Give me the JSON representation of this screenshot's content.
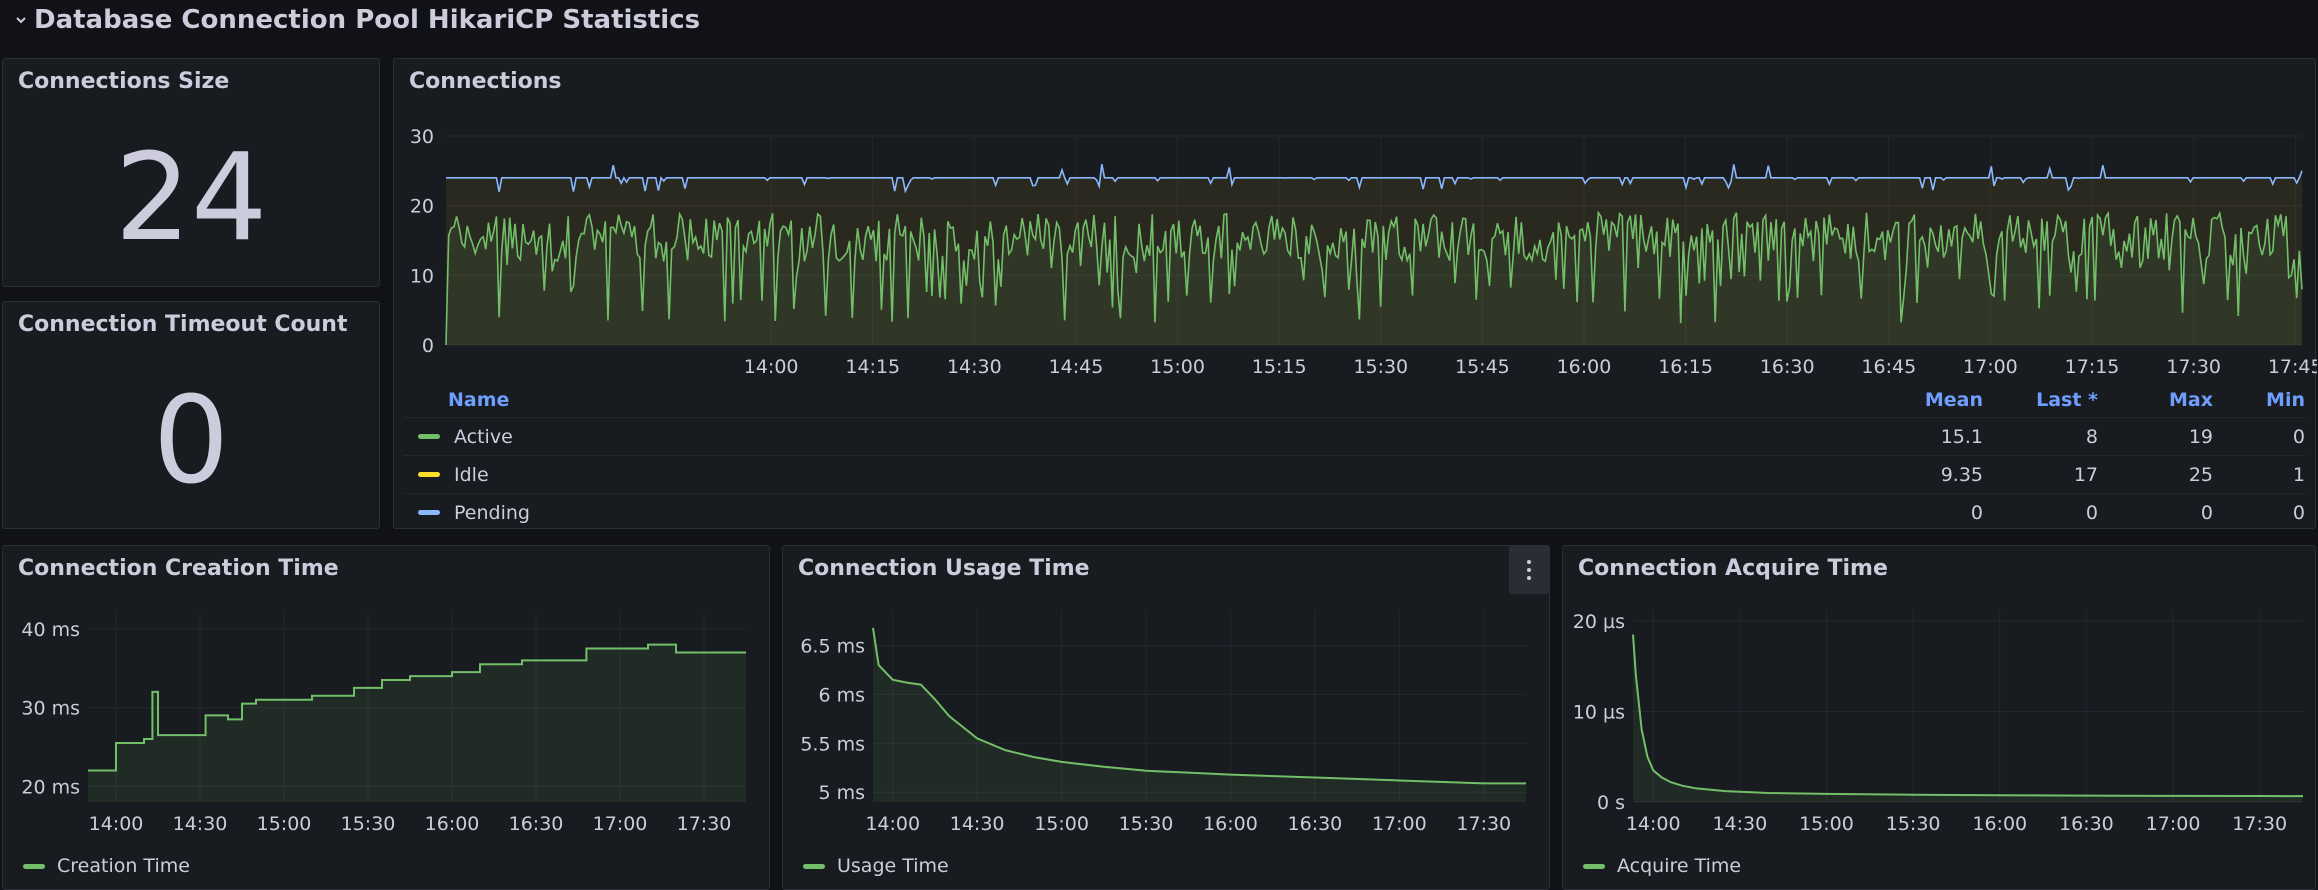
{
  "row_title": "Database Connection Pool HikariCP Statistics",
  "panels": {
    "size": {
      "title": "Connections Size",
      "value": "24"
    },
    "timeout": {
      "title": "Connection Timeout Count",
      "value": "0"
    },
    "connections": {
      "title": "Connections"
    },
    "creation": {
      "title": "Connection Creation Time"
    },
    "usage": {
      "title": "Connection Usage Time"
    },
    "acquire": {
      "title": "Connection Acquire Time"
    }
  },
  "legend_table": {
    "headers": {
      "name": "Name",
      "mean": "Mean",
      "last": "Last *",
      "max": "Max",
      "min": "Min"
    },
    "rows": [
      {
        "name": "Active",
        "color": "#73bf69",
        "mean": "15.1",
        "last": "8",
        "max": "19",
        "min": "0"
      },
      {
        "name": "Idle",
        "color": "#fade2a",
        "mean": "9.35",
        "last": "17",
        "max": "25",
        "min": "1"
      },
      {
        "name": "Pending",
        "color": "#8ab8ff",
        "mean": "0",
        "last": "0",
        "max": "0",
        "min": "0"
      }
    ]
  },
  "colors": {
    "green": "#73bf69",
    "blue": "#8ab8ff",
    "yellow": "#fade2a",
    "header_blue": "#6e9fff"
  },
  "chart_data": [
    {
      "id": "connections",
      "type": "line",
      "title": "Connections",
      "x_ticks": [
        "14:00",
        "14:15",
        "14:30",
        "14:45",
        "15:00",
        "15:15",
        "15:30",
        "15:45",
        "16:00",
        "16:15",
        "16:30",
        "16:45",
        "17:00",
        "17:15",
        "17:30",
        "17:45"
      ],
      "y_ticks": [
        "0",
        "10",
        "20",
        "30"
      ],
      "ylim": [
        0,
        30
      ],
      "x_range_minutes": [
        792,
        1066
      ],
      "series": [
        {
          "name": "Active",
          "color": "#73bf69",
          "mean": 15.1,
          "min": 0,
          "max": 19,
          "last": 8
        },
        {
          "name": "Idle",
          "color": "#fade2a",
          "mean": 9.35,
          "min": 1,
          "max": 25,
          "last": 17
        },
        {
          "name": "Pending",
          "color": "#8ab8ff",
          "mean": 0,
          "min": 0,
          "max": 0,
          "last": 0
        }
      ],
      "total_line": {
        "color": "#8ab8ff",
        "typical": 24,
        "min": 21,
        "max": 26
      }
    },
    {
      "id": "creation",
      "type": "line",
      "title": "Connection Creation Time",
      "y_ticks": [
        "20 ms",
        "30 ms",
        "40 ms"
      ],
      "ylim": [
        18,
        41
      ],
      "x_ticks": [
        "14:00",
        "14:30",
        "15:00",
        "15:30",
        "16:00",
        "16:30",
        "17:00",
        "17:30"
      ],
      "series": [
        {
          "name": "Creation Time",
          "color": "#73bf69",
          "x": [
            "13:50",
            "13:58",
            "14:00",
            "14:06",
            "14:10",
            "14:13",
            "14:15",
            "14:28",
            "14:32",
            "14:40",
            "14:45",
            "14:50",
            "14:58",
            "15:10",
            "15:25",
            "15:35",
            "15:45",
            "16:00",
            "16:10",
            "16:25",
            "16:35",
            "16:48",
            "17:00",
            "17:10",
            "17:20",
            "17:45"
          ],
          "values": [
            22,
            22,
            25.5,
            25.5,
            26,
            32,
            26.5,
            26.5,
            29,
            28.5,
            30.5,
            31,
            31,
            31.5,
            32.5,
            33.5,
            34,
            34.5,
            35.5,
            36,
            36,
            37.5,
            37.5,
            38,
            37,
            37
          ]
        }
      ]
    },
    {
      "id": "usage",
      "type": "line",
      "title": "Connection Usage Time",
      "y_ticks": [
        "5 ms",
        "5.5 ms",
        "6 ms",
        "6.5 ms"
      ],
      "ylim": [
        4.9,
        6.75
      ],
      "x_ticks": [
        "14:00",
        "14:30",
        "15:00",
        "15:30",
        "16:00",
        "16:30",
        "17:00",
        "17:30"
      ],
      "series": [
        {
          "name": "Usage Time",
          "color": "#73bf69",
          "x": [
            "13:53",
            "13:55",
            "14:00",
            "14:05",
            "14:10",
            "14:15",
            "14:20",
            "14:30",
            "14:40",
            "14:50",
            "15:00",
            "15:15",
            "15:30",
            "15:45",
            "16:00",
            "16:30",
            "17:00",
            "17:30",
            "17:45"
          ],
          "values": [
            6.68,
            6.3,
            6.15,
            6.12,
            6.1,
            5.95,
            5.78,
            5.55,
            5.43,
            5.36,
            5.31,
            5.26,
            5.22,
            5.2,
            5.18,
            5.15,
            5.12,
            5.09,
            5.09
          ]
        }
      ]
    },
    {
      "id": "acquire",
      "type": "line",
      "title": "Connection Acquire Time",
      "y_ticks": [
        "0 s",
        "10 µs",
        "20 µs"
      ],
      "ylim": [
        0,
        20
      ],
      "x_ticks": [
        "14:00",
        "14:30",
        "15:00",
        "15:30",
        "16:00",
        "16:30",
        "17:00",
        "17:30"
      ],
      "series": [
        {
          "name": "Acquire Time",
          "color": "#73bf69",
          "x": [
            "13:53",
            "13:54",
            "13:56",
            "13:58",
            "14:00",
            "14:03",
            "14:06",
            "14:10",
            "14:15",
            "14:25",
            "14:40",
            "15:00",
            "15:30",
            "16:00",
            "16:30",
            "17:00",
            "17:30",
            "17:45"
          ],
          "values": [
            18.5,
            14,
            8,
            5,
            3.5,
            2.7,
            2.2,
            1.8,
            1.5,
            1.2,
            1.0,
            0.9,
            0.8,
            0.75,
            0.7,
            0.68,
            0.66,
            0.65
          ]
        }
      ]
    }
  ]
}
